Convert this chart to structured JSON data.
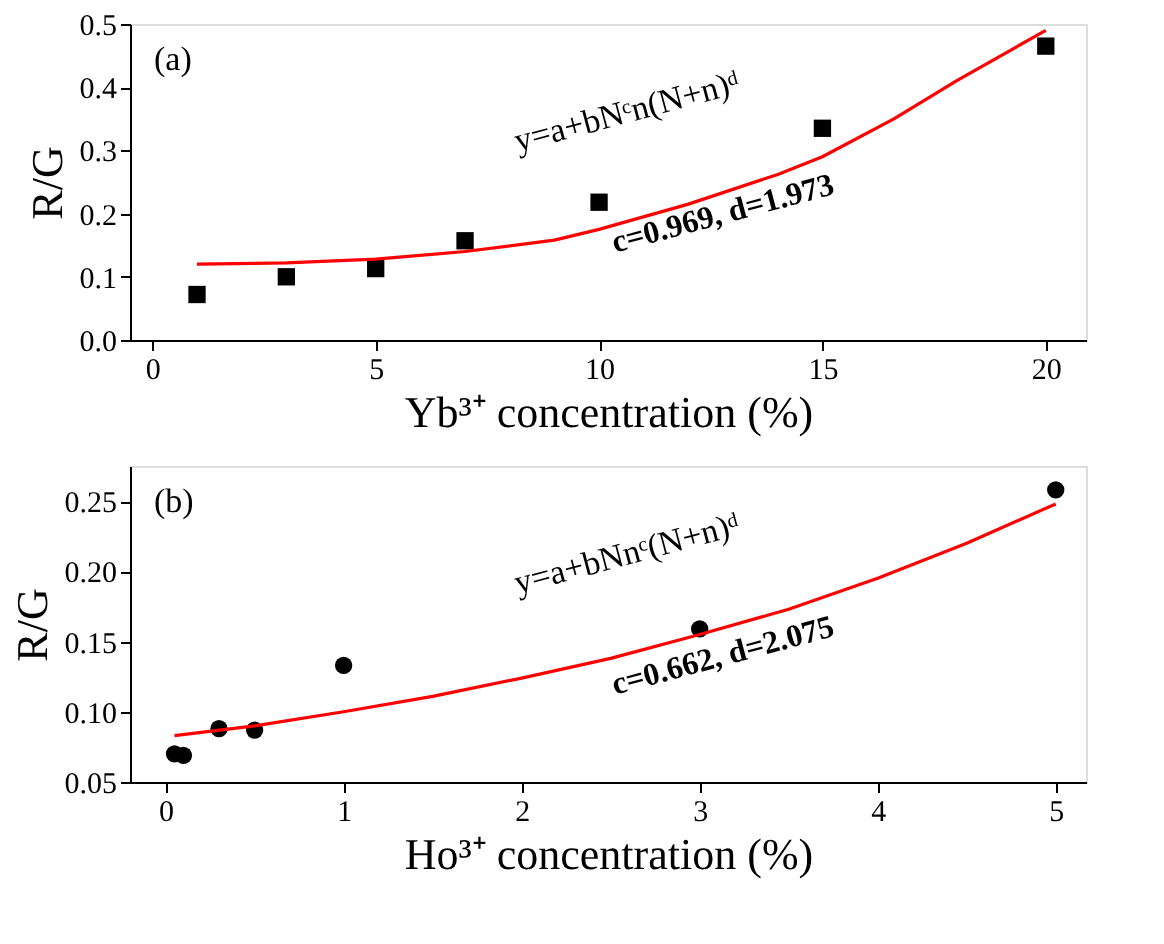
{
  "chart_data": [
    {
      "type": "scatter",
      "xlabel": "Yb³⁺ concentration (%)",
      "ylabel": "R/G",
      "xlim": [
        -0.5,
        20.9
      ],
      "xticks": [
        0,
        5,
        10,
        15,
        20
      ],
      "ylim": [
        0,
        0.5
      ],
      "yticks": [
        {
          "value": 0,
          "label": "0.0"
        },
        0.1,
        0.2,
        0.3,
        0.4,
        0.5
      ],
      "annotations": [
        "(a)",
        "y=a+bNᶜn(N+n)ᵈ",
        "c=0.969, d=1.973"
      ],
      "series": [
        {
          "marker": "square",
          "color": "#000000",
          "x": [
            1,
            3,
            5,
            7,
            10,
            15,
            20
          ],
          "values": [
            0.072,
            0.1,
            0.113,
            0.157,
            0.218,
            0.335,
            0.465
          ]
        },
        {
          "type": "line",
          "color": "#ff0000",
          "x": [
            1,
            3,
            5,
            7,
            9,
            10,
            12,
            14,
            15,
            16.6,
            18,
            19,
            20
          ],
          "values": [
            0.12,
            0.122,
            0.128,
            0.14,
            0.158,
            0.175,
            0.215,
            0.262,
            0.29,
            0.35,
            0.41,
            0.45,
            0.49
          ]
        }
      ]
    },
    {
      "type": "scatter",
      "xlabel": "Ho³⁺ concentration (%)",
      "ylabel": "R/G",
      "xlim": [
        -0.2,
        5.17
      ],
      "xticks": [
        0,
        1,
        2,
        3,
        4,
        5
      ],
      "ylim": [
        0.05,
        0.275
      ],
      "yticks": [
        {
          "value": 0.05,
          "label": "0.05"
        },
        {
          "value": 0.1,
          "label": "0.10"
        },
        {
          "value": 0.15,
          "label": "0.15"
        },
        {
          "value": 0.2,
          "label": "0.20"
        },
        {
          "value": 0.25,
          "label": "0.25"
        }
      ],
      "annotations": [
        "(b)",
        "y=a+bNnᶜ(N+n)ᵈ",
        "c=0.662, d=2.075"
      ],
      "series": [
        {
          "marker": "circle",
          "color": "#000000",
          "x": [
            0.05,
            0.1,
            0.3,
            0.5,
            1,
            3,
            5
          ],
          "values": [
            0.07,
            0.069,
            0.088,
            0.087,
            0.133,
            0.159,
            0.258
          ]
        },
        {
          "type": "line",
          "color": "#ff0000",
          "x": [
            0.05,
            0.5,
            1,
            1.5,
            2,
            2.5,
            3,
            3.5,
            4,
            4.5,
            5
          ],
          "values": [
            0.083,
            0.09,
            0.1,
            0.111,
            0.124,
            0.138,
            0.155,
            0.173,
            0.195,
            0.22,
            0.248
          ]
        }
      ]
    }
  ]
}
